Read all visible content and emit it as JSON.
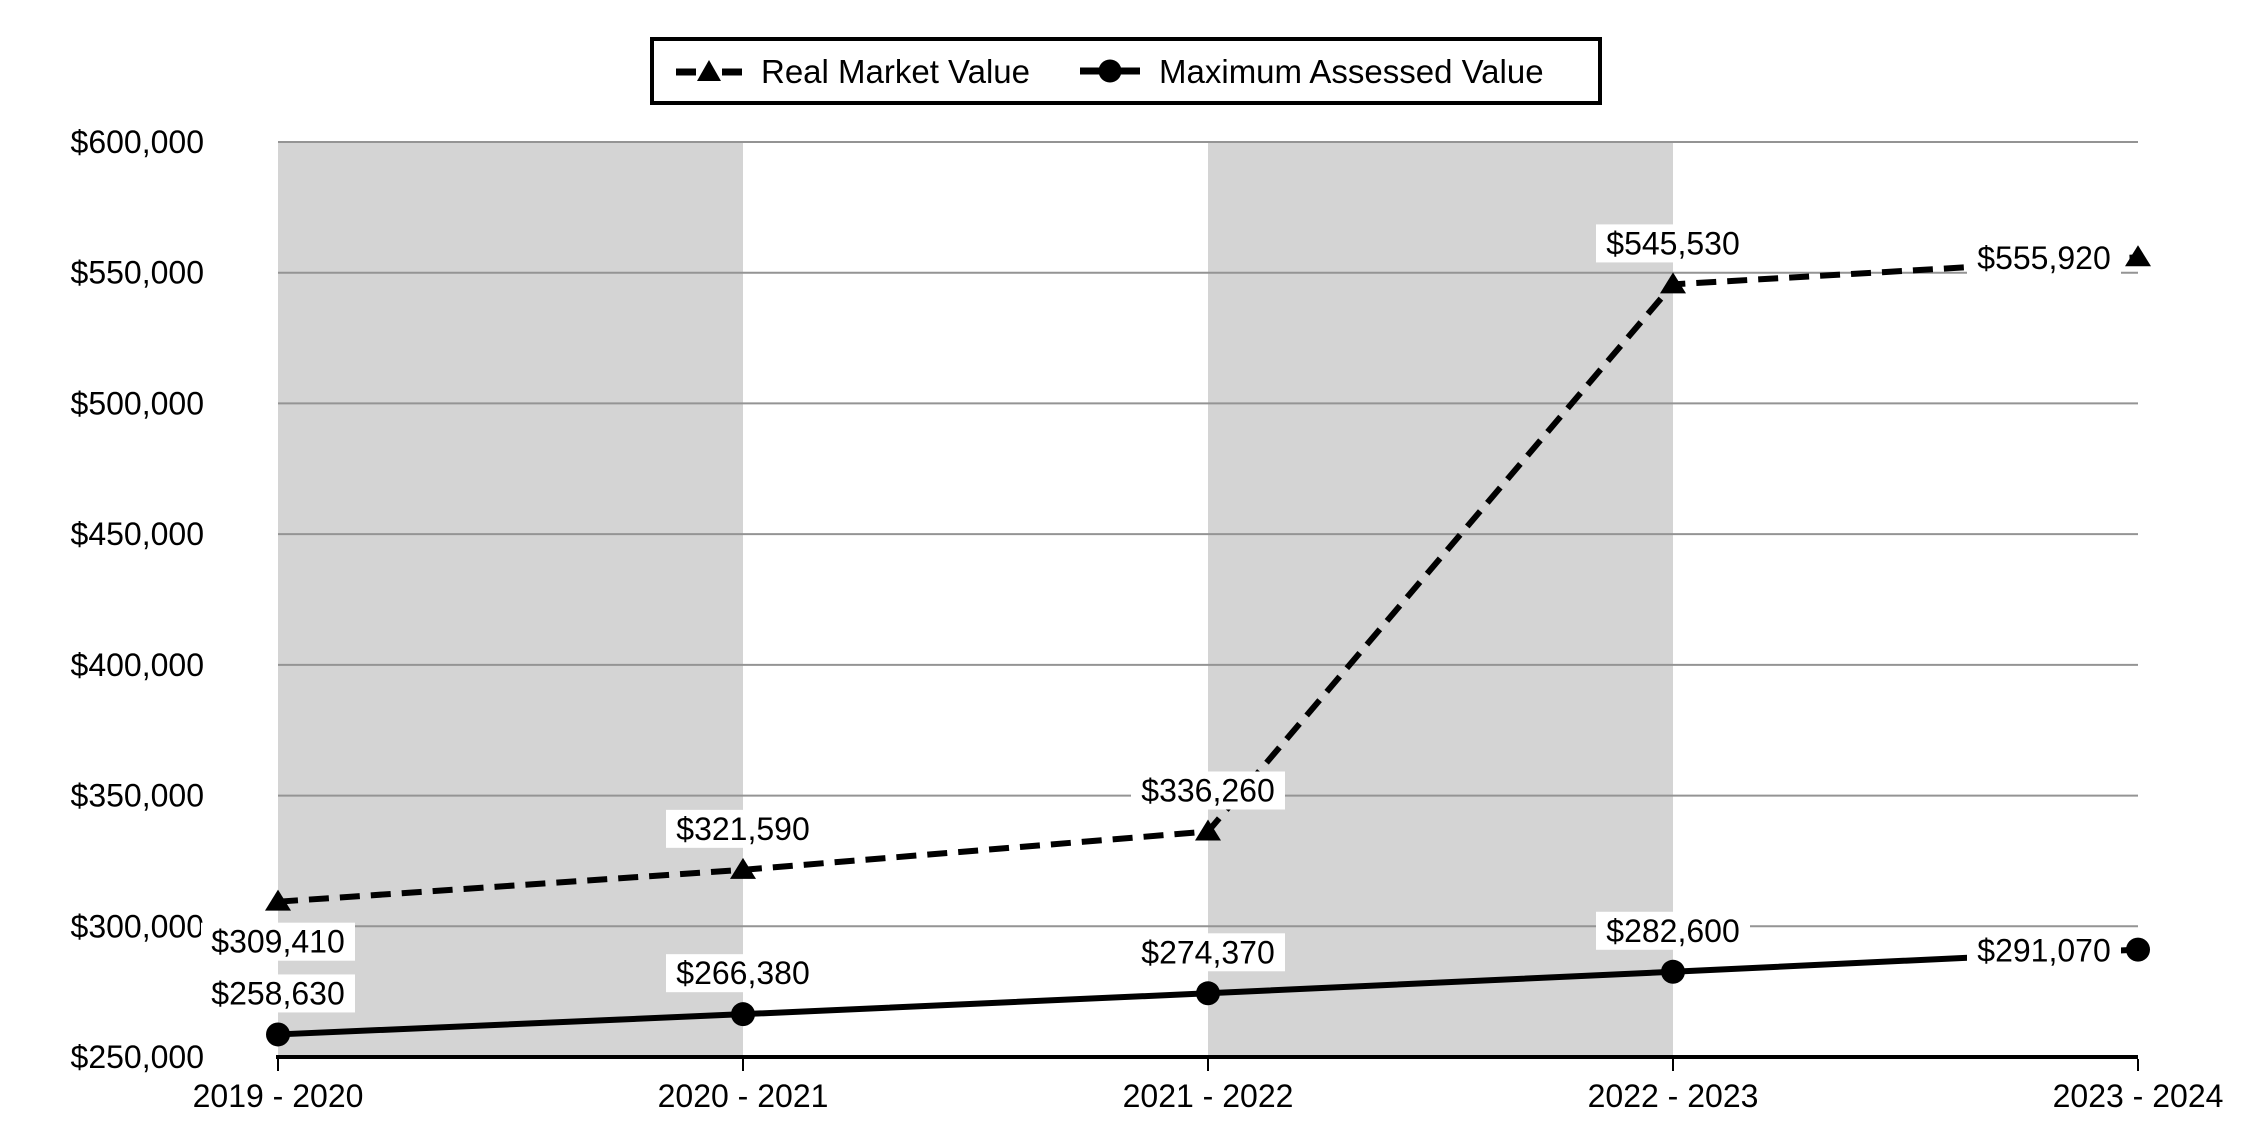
{
  "legend": {
    "items": [
      {
        "label": "Real Market Value",
        "marker": "dashed-line-triangle-icon"
      },
      {
        "label": "Maximum Assessed Value",
        "marker": "solid-line-circle-icon"
      }
    ]
  },
  "chart_data": {
    "type": "line",
    "title": "",
    "xlabel": "",
    "ylabel": "",
    "categories": [
      "2019 - 2020",
      "2020 - 2021",
      "2021 - 2022",
      "2022 - 2023",
      "2023 - 2024"
    ],
    "series": [
      {
        "name": "Real Market Value",
        "line_style": "dashed",
        "marker": "triangle",
        "color": "#000000",
        "values": [
          309410,
          321590,
          336260,
          545530,
          555920
        ],
        "data_labels": [
          "$309,410",
          "$321,590",
          "$336,260",
          "$545,530",
          "$555,920"
        ],
        "label_positions": [
          "below",
          "above",
          "above",
          "above",
          "left"
        ]
      },
      {
        "name": "Maximum Assessed Value",
        "line_style": "solid",
        "marker": "circle",
        "color": "#000000",
        "values": [
          258630,
          266380,
          274370,
          282600,
          291070
        ],
        "data_labels": [
          "$258,630",
          "$266,380",
          "$274,370",
          "$282,600",
          "$291,070"
        ],
        "label_positions": [
          "above",
          "above",
          "above",
          "above",
          "left"
        ]
      }
    ],
    "y_axis": {
      "min": 250000,
      "max": 600000,
      "step": 50000,
      "tick_labels": [
        "$250,000",
        "$300,000",
        "$350,000",
        "$400,000",
        "$450,000",
        "$500,000",
        "$550,000",
        "$600,000"
      ]
    },
    "grid": true,
    "legend_position": "top",
    "shaded_column_bands": [
      [
        0,
        1
      ],
      [
        2,
        3
      ]
    ],
    "colors": {
      "band": "#d4d4d4",
      "gridline": "#949494",
      "axis": "#000000",
      "series": "#000000",
      "label_background": "#ffffff",
      "text": "#000000"
    }
  }
}
